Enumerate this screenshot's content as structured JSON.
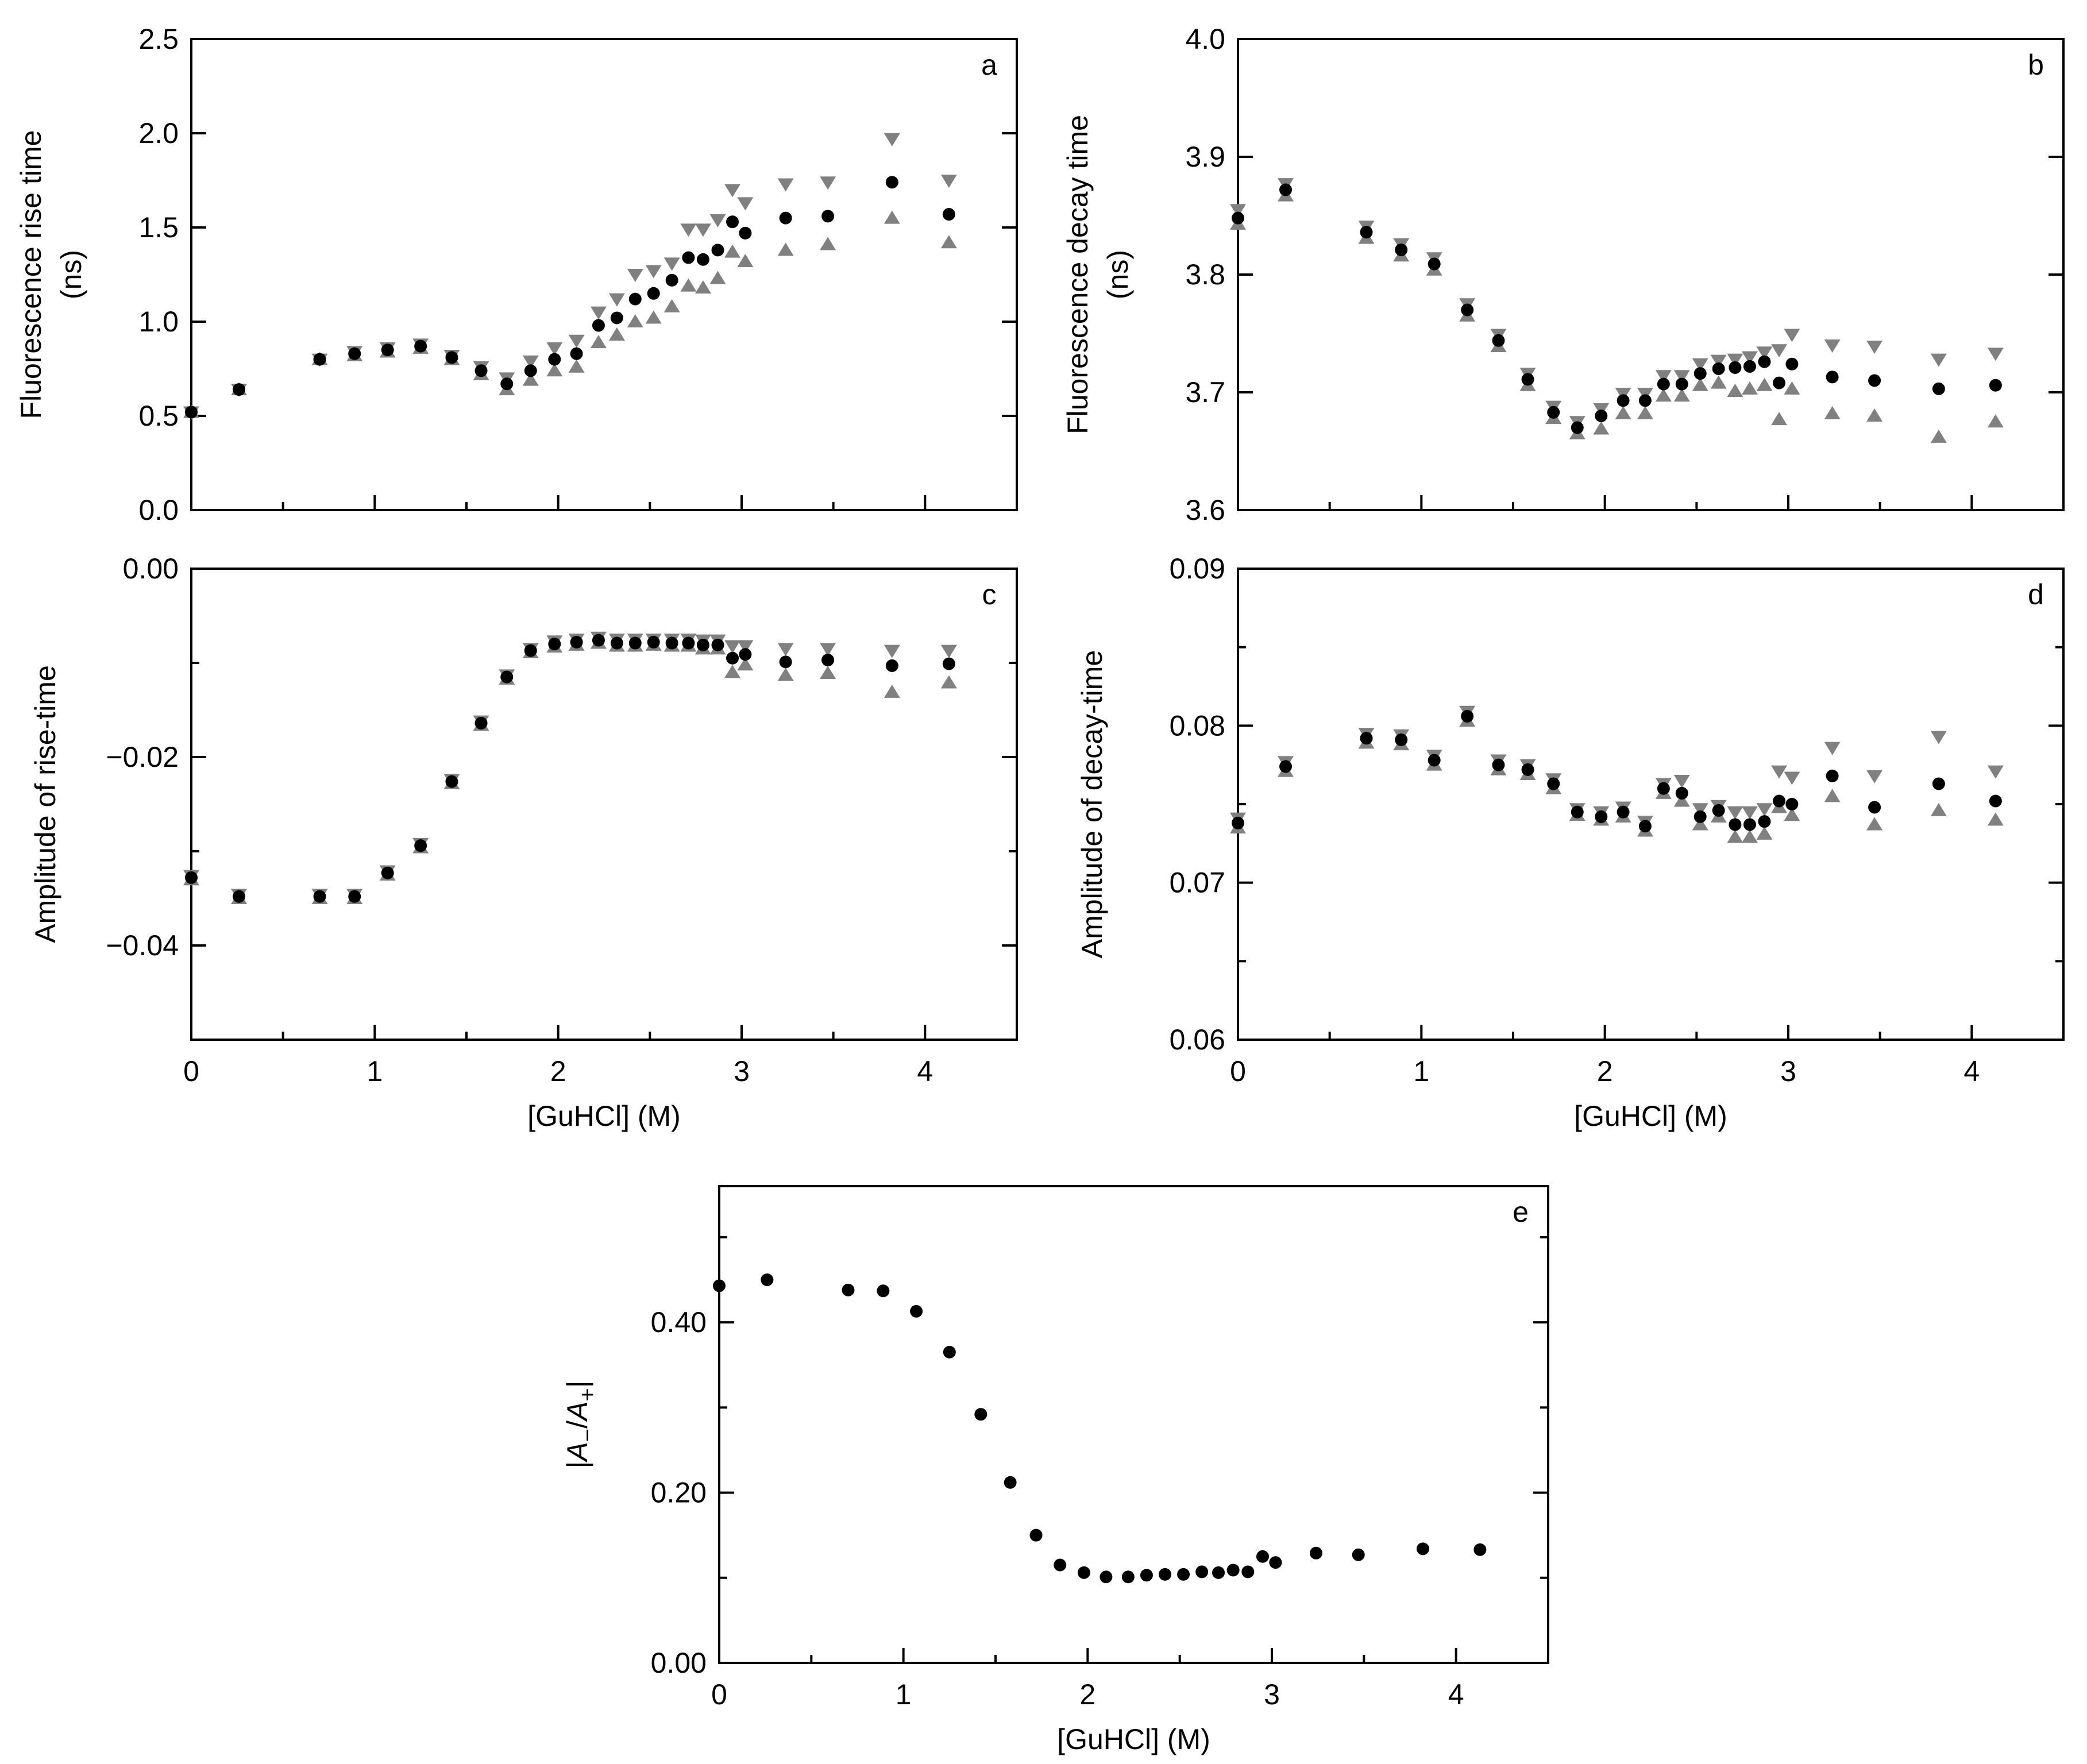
{
  "colors": {
    "mean": "#000000",
    "bound": "#808080",
    "axis": "#000000"
  },
  "chart_data": [
    {
      "panel": "a",
      "type": "scatter",
      "title": "",
      "xlabel": "[GuHCl] (M)",
      "show_xlabel": false,
      "ylabel": [
        "Fluorescence rise time",
        "(ns)"
      ],
      "xlim": [
        0,
        4.5
      ],
      "ylim": [
        0,
        2.5
      ],
      "xticks": [
        0,
        1,
        2,
        3,
        4
      ],
      "yticks": [
        0,
        0.5,
        1,
        1.5,
        2,
        2.5
      ],
      "yticklabels": [
        "0.0",
        "0.5",
        "1.0",
        "1.5",
        "2.0",
        "2.5"
      ],
      "show_xticklabels": false,
      "x": [
        0,
        0.26,
        0.7,
        0.89,
        1.07,
        1.25,
        1.42,
        1.58,
        1.72,
        1.85,
        1.98,
        2.1,
        2.22,
        2.32,
        2.42,
        2.52,
        2.62,
        2.71,
        2.79,
        2.87,
        2.95,
        3.02,
        3.24,
        3.47,
        3.82,
        4.13
      ],
      "series": [
        {
          "name": "mean",
          "marker": "circle",
          "values": [
            0.52,
            0.64,
            0.8,
            0.83,
            0.85,
            0.87,
            0.81,
            0.74,
            0.67,
            0.74,
            0.8,
            0.83,
            0.98,
            1.02,
            1.12,
            1.15,
            1.22,
            1.34,
            1.33,
            1.38,
            1.53,
            1.47,
            1.55,
            1.56,
            1.74,
            1.57
          ]
        },
        {
          "name": "upper",
          "marker": "triangle-down",
          "values": [
            0.52,
            0.64,
            0.8,
            0.84,
            0.86,
            0.88,
            0.82,
            0.76,
            0.7,
            0.79,
            0.86,
            0.9,
            1.05,
            1.12,
            1.25,
            1.27,
            1.31,
            1.49,
            1.49,
            1.54,
            1.7,
            1.63,
            1.73,
            1.74,
            1.97,
            1.75
          ]
        },
        {
          "name": "lower",
          "marker": "triangle-up",
          "values": [
            0.52,
            0.64,
            0.8,
            0.82,
            0.84,
            0.86,
            0.8,
            0.72,
            0.64,
            0.69,
            0.74,
            0.76,
            0.89,
            0.93,
            1.0,
            1.02,
            1.08,
            1.19,
            1.18,
            1.23,
            1.37,
            1.32,
            1.38,
            1.41,
            1.55,
            1.42
          ]
        }
      ]
    },
    {
      "panel": "b",
      "type": "scatter",
      "title": "",
      "xlabel": "[GuHCl] (M)",
      "show_xlabel": false,
      "ylabel": [
        "Fluorescence decay time",
        "(ns)"
      ],
      "xlim": [
        0,
        4.5
      ],
      "ylim": [
        3.6,
        4.0
      ],
      "xticks": [
        0,
        1,
        2,
        3,
        4
      ],
      "yticks": [
        3.6,
        3.7,
        3.8,
        3.9,
        4.0
      ],
      "yticklabels": [
        "3.6",
        "3.7",
        "3.8",
        "3.9",
        "4.0"
      ],
      "show_xticklabels": false,
      "x": [
        0,
        0.26,
        0.7,
        0.89,
        1.07,
        1.25,
        1.42,
        1.58,
        1.72,
        1.85,
        1.98,
        2.1,
        2.22,
        2.32,
        2.42,
        2.52,
        2.62,
        2.71,
        2.79,
        2.87,
        2.95,
        3.02,
        3.24,
        3.47,
        3.82,
        4.13
      ],
      "series": [
        {
          "name": "mean",
          "marker": "circle",
          "values": [
            3.848,
            3.872,
            3.836,
            3.821,
            3.809,
            3.77,
            3.744,
            3.711,
            3.683,
            3.67,
            3.68,
            3.693,
            3.693,
            3.707,
            3.707,
            3.716,
            3.72,
            3.721,
            3.722,
            3.726,
            3.708,
            3.724,
            3.713,
            3.71,
            3.703,
            3.706
          ]
        },
        {
          "name": "upper",
          "marker": "triangle-down",
          "values": [
            3.855,
            3.877,
            3.841,
            3.826,
            3.814,
            3.775,
            3.749,
            3.716,
            3.688,
            3.675,
            3.686,
            3.699,
            3.699,
            3.714,
            3.714,
            3.724,
            3.727,
            3.728,
            3.73,
            3.734,
            3.736,
            3.749,
            3.74,
            3.739,
            3.728,
            3.733
          ]
        },
        {
          "name": "lower",
          "marker": "triangle-up",
          "values": [
            3.843,
            3.867,
            3.831,
            3.816,
            3.804,
            3.765,
            3.739,
            3.706,
            3.678,
            3.665,
            3.669,
            3.682,
            3.682,
            3.697,
            3.697,
            3.706,
            3.708,
            3.701,
            3.703,
            3.706,
            3.677,
            3.703,
            3.682,
            3.68,
            3.662,
            3.675
          ]
        }
      ]
    },
    {
      "panel": "c",
      "type": "scatter",
      "title": "",
      "xlabel": "[GuHCl] (M)",
      "show_xlabel": true,
      "ylabel": [
        "Amplitude of rise-time"
      ],
      "xlim": [
        0,
        4.5
      ],
      "ylim": [
        -0.05,
        0
      ],
      "xticks": [
        0,
        1,
        2,
        3,
        4
      ],
      "yticks": [
        -0.04,
        -0.02,
        0
      ],
      "yticklabels": [
        "−0.04",
        "−0.02",
        "0.00"
      ],
      "minor_yticks": [
        -0.05,
        -0.03,
        -0.01
      ],
      "show_xticklabels": true,
      "x": [
        0,
        0.26,
        0.7,
        0.89,
        1.07,
        1.25,
        1.42,
        1.58,
        1.72,
        1.85,
        1.98,
        2.1,
        2.22,
        2.32,
        2.42,
        2.52,
        2.62,
        2.71,
        2.79,
        2.87,
        2.95,
        3.02,
        3.24,
        3.47,
        3.82,
        4.13
      ],
      "series": [
        {
          "name": "mean",
          "marker": "circle",
          "values": [
            -0.0328,
            -0.0348,
            -0.0348,
            -0.0348,
            -0.0323,
            -0.0294,
            -0.0226,
            -0.0164,
            -0.0115,
            -0.0087,
            -0.008,
            -0.0078,
            -0.0076,
            -0.0079,
            -0.0079,
            -0.0078,
            -0.0079,
            -0.0079,
            -0.0081,
            -0.0081,
            -0.0095,
            -0.0091,
            -0.0099,
            -0.0097,
            -0.0103,
            -0.0101
          ]
        },
        {
          "name": "upper",
          "marker": "triangle-down",
          "values": [
            -0.0326,
            -0.0346,
            -0.0346,
            -0.0346,
            -0.0321,
            -0.0292,
            -0.0224,
            -0.0162,
            -0.0113,
            -0.0085,
            -0.0077,
            -0.0075,
            -0.0073,
            -0.0075,
            -0.0075,
            -0.0075,
            -0.0075,
            -0.0075,
            -0.0076,
            -0.0076,
            -0.0082,
            -0.0082,
            -0.0085,
            -0.0085,
            -0.0087,
            -0.0087
          ]
        },
        {
          "name": "lower",
          "marker": "triangle-up",
          "values": [
            -0.033,
            -0.035,
            -0.035,
            -0.035,
            -0.0325,
            -0.0296,
            -0.0228,
            -0.0166,
            -0.0117,
            -0.0089,
            -0.0083,
            -0.0081,
            -0.0079,
            -0.0082,
            -0.0082,
            -0.0081,
            -0.0082,
            -0.0082,
            -0.0085,
            -0.0085,
            -0.011,
            -0.0102,
            -0.0113,
            -0.0111,
            -0.0131,
            -0.0121
          ]
        }
      ]
    },
    {
      "panel": "d",
      "type": "scatter",
      "title": "",
      "xlabel": "[GuHCl] (M)",
      "show_xlabel": true,
      "ylabel": [
        "Amplitude of decay-time"
      ],
      "xlim": [
        0,
        4.5
      ],
      "ylim": [
        0.06,
        0.09
      ],
      "xticks": [
        0,
        1,
        2,
        3,
        4
      ],
      "yticks": [
        0.06,
        0.07,
        0.08,
        0.09
      ],
      "yticklabels": [
        "0.06",
        "0.07",
        "0.08",
        "0.09"
      ],
      "minor_yticks": [
        0.065,
        0.075,
        0.085
      ],
      "show_xticklabels": true,
      "x": [
        0,
        0.26,
        0.7,
        0.89,
        1.07,
        1.25,
        1.42,
        1.58,
        1.72,
        1.85,
        1.98,
        2.1,
        2.22,
        2.32,
        2.42,
        2.52,
        2.62,
        2.71,
        2.79,
        2.87,
        2.95,
        3.02,
        3.24,
        3.47,
        3.82,
        4.13
      ],
      "series": [
        {
          "name": "mean",
          "marker": "circle",
          "values": [
            0.0738,
            0.0774,
            0.0792,
            0.0791,
            0.0778,
            0.0806,
            0.0775,
            0.0772,
            0.0763,
            0.0745,
            0.0742,
            0.0745,
            0.0736,
            0.076,
            0.0757,
            0.0742,
            0.0746,
            0.0737,
            0.0737,
            0.0739,
            0.0752,
            0.075,
            0.0768,
            0.0748,
            0.0763,
            0.0752
          ]
        },
        {
          "name": "upper",
          "marker": "triangle-down",
          "values": [
            0.0741,
            0.0777,
            0.0795,
            0.0794,
            0.0781,
            0.0809,
            0.0778,
            0.0775,
            0.0766,
            0.0747,
            0.0745,
            0.0748,
            0.0739,
            0.0763,
            0.0765,
            0.0747,
            0.0749,
            0.0745,
            0.0745,
            0.0747,
            0.0771,
            0.0767,
            0.0786,
            0.0768,
            0.0793,
            0.0771
          ]
        },
        {
          "name": "lower",
          "marker": "triangle-up",
          "values": [
            0.0735,
            0.0771,
            0.0789,
            0.0788,
            0.0775,
            0.0803,
            0.0772,
            0.0769,
            0.076,
            0.0743,
            0.074,
            0.0742,
            0.0733,
            0.0757,
            0.0752,
            0.0737,
            0.0742,
            0.0729,
            0.0729,
            0.0731,
            0.0748,
            0.0743,
            0.0755,
            0.0737,
            0.0746,
            0.074
          ]
        }
      ]
    },
    {
      "panel": "e",
      "type": "scatter",
      "title": "",
      "xlabel": "[GuHCl] (M)",
      "show_xlabel": true,
      "ylabel": [
        "|A−/A+|"
      ],
      "xlim": [
        0,
        4.5
      ],
      "ylim": [
        0,
        0.56
      ],
      "xticks": [
        0,
        1,
        2,
        3,
        4
      ],
      "yticks": [
        0,
        0.2,
        0.4
      ],
      "yticklabels": [
        "0.00",
        "0.20",
        "0.40"
      ],
      "minor_yticks": [
        0.1,
        0.3,
        0.5
      ],
      "show_xticklabels": true,
      "x": [
        0,
        0.26,
        0.7,
        0.89,
        1.07,
        1.25,
        1.42,
        1.58,
        1.72,
        1.85,
        1.98,
        2.1,
        2.22,
        2.32,
        2.42,
        2.52,
        2.62,
        2.71,
        2.79,
        2.87,
        2.95,
        3.02,
        3.24,
        3.47,
        3.82,
        4.13
      ],
      "series": [
        {
          "name": "mean",
          "marker": "circle",
          "values": [
            0.443,
            0.45,
            0.438,
            0.437,
            0.413,
            0.365,
            0.292,
            0.212,
            0.15,
            0.115,
            0.106,
            0.101,
            0.101,
            0.103,
            0.104,
            0.104,
            0.107,
            0.106,
            0.109,
            0.107,
            0.125,
            0.118,
            0.129,
            0.127,
            0.134,
            0.133
          ]
        }
      ]
    }
  ]
}
